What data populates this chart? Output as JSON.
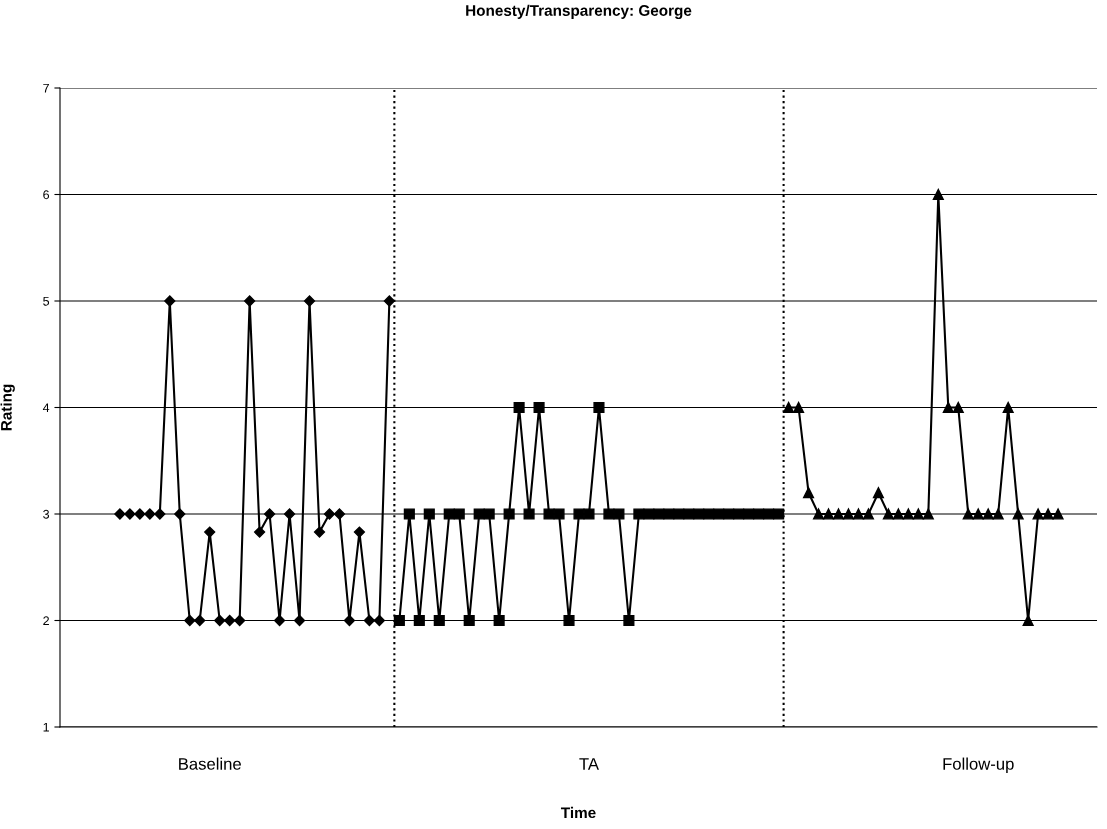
{
  "chart_data": {
    "type": "line",
    "title": "Honesty/Transparency: George",
    "xlabel": "Time",
    "ylabel": "Rating",
    "categories": [
      null,
      null,
      null,
      null,
      null,
      null,
      null,
      null,
      null,
      "Baseline",
      null,
      null,
      null,
      null,
      null,
      null,
      null,
      null,
      null,
      null,
      null,
      null,
      null,
      null,
      null,
      null,
      null,
      null,
      null,
      null,
      null,
      null,
      null,
      null,
      null,
      null,
      null,
      null,
      null,
      null,
      null,
      null,
      null,
      null,
      null,
      null,
      null,
      "TA",
      null,
      null,
      null,
      null,
      null,
      null,
      null,
      null,
      null,
      null,
      null,
      null,
      null,
      null,
      null,
      null,
      null,
      null,
      null,
      null,
      null,
      null,
      null,
      null,
      null,
      null,
      null,
      null,
      null,
      null,
      null,
      null,
      null,
      null,
      null,
      null,
      null,
      null,
      "Follow-up",
      null,
      null,
      null,
      null,
      null,
      null,
      null,
      null
    ],
    "ylim": [
      1,
      7
    ],
    "yticks": [
      1,
      2,
      3,
      4,
      5,
      6,
      7
    ],
    "grid": "y",
    "series": [
      {
        "color": "#000000",
        "marker": "diamond",
        "values": [
          3,
          3,
          3,
          3,
          3,
          5,
          3,
          2,
          2,
          2.83,
          2,
          2,
          2,
          5,
          2.83,
          3,
          2,
          3,
          2,
          5,
          2.83,
          3,
          3,
          2,
          2.83,
          2,
          2,
          5,
          null,
          null,
          null,
          null,
          null,
          null,
          null,
          null,
          null,
          null,
          null,
          null,
          null,
          null,
          null,
          null,
          null,
          null,
          null,
          null,
          null,
          null,
          null,
          null,
          null,
          null,
          null,
          null,
          null,
          null,
          null,
          null,
          null,
          null,
          null,
          null,
          null,
          null,
          null,
          null,
          null,
          null,
          null,
          null,
          null,
          null,
          null,
          null,
          null,
          null,
          null,
          null,
          null,
          null,
          null,
          null,
          null,
          null,
          null,
          null,
          null,
          null,
          null,
          null,
          null,
          null,
          null
        ]
      },
      {
        "color": "#000000",
        "marker": "square",
        "values": [
          null,
          null,
          null,
          null,
          null,
          null,
          null,
          null,
          null,
          null,
          null,
          null,
          null,
          null,
          null,
          null,
          null,
          null,
          null,
          null,
          null,
          null,
          null,
          null,
          null,
          null,
          null,
          null,
          2,
          3,
          2,
          3,
          2,
          3,
          3,
          2,
          3,
          3,
          2,
          3,
          4,
          3,
          4,
          3,
          3,
          2,
          3,
          3,
          4,
          3,
          3,
          2,
          3,
          3,
          3,
          3,
          3,
          3,
          3,
          3,
          3,
          3,
          3,
          3,
          3,
          3,
          3,
          null,
          null,
          null,
          null,
          null,
          null,
          null,
          null,
          null,
          null,
          null,
          null,
          null,
          null,
          null,
          null,
          null,
          null,
          null,
          null,
          null,
          null,
          null,
          null,
          null,
          null,
          null,
          null
        ]
      },
      {
        "color": "#000000",
        "marker": "triangle",
        "values": [
          null,
          null,
          null,
          null,
          null,
          null,
          null,
          null,
          null,
          null,
          null,
          null,
          null,
          null,
          null,
          null,
          null,
          null,
          null,
          null,
          null,
          null,
          null,
          null,
          null,
          null,
          null,
          null,
          null,
          null,
          null,
          null,
          null,
          null,
          null,
          null,
          null,
          null,
          null,
          null,
          null,
          null,
          null,
          null,
          null,
          null,
          null,
          null,
          null,
          null,
          null,
          null,
          null,
          null,
          null,
          null,
          null,
          null,
          null,
          null,
          null,
          null,
          null,
          null,
          null,
          null,
          null,
          4,
          4,
          3.2,
          3,
          3,
          3,
          3,
          3,
          3,
          3.2,
          3,
          3,
          3,
          3,
          3,
          6,
          4,
          4,
          3,
          3,
          3,
          3,
          4,
          3,
          2,
          3,
          3,
          3
        ]
      }
    ]
  }
}
